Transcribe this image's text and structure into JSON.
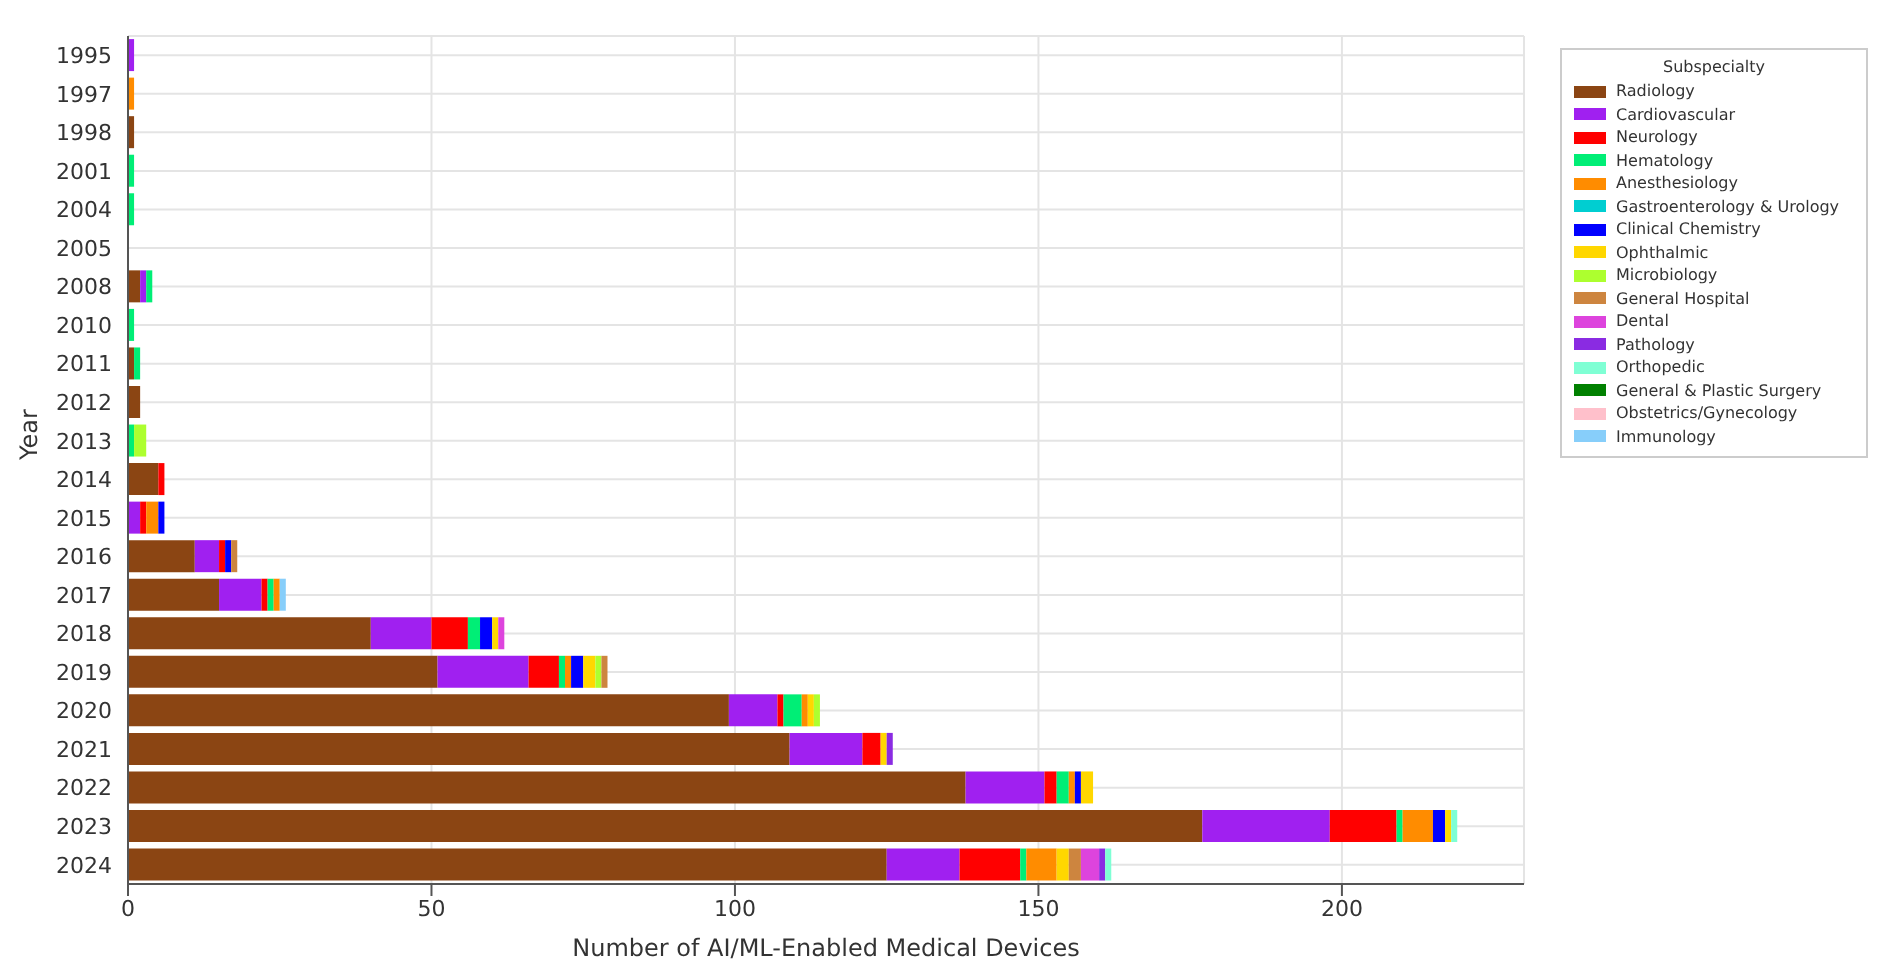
{
  "chart_data": {
    "type": "bar",
    "orientation": "horizontal",
    "stacked": true,
    "xlabel": "Number of AI/ML-Enabled Medical Devices",
    "ylabel": "Year",
    "legend_title": "Subspecialty",
    "legend": "top right",
    "grid": true,
    "categories": [
      "1995",
      "1997",
      "1998",
      "2001",
      "2004",
      "2005",
      "2008",
      "2010",
      "2011",
      "2012",
      "2013",
      "2014",
      "2015",
      "2016",
      "2017",
      "2018",
      "2019",
      "2020",
      "2021",
      "2022",
      "2023",
      "2024"
    ],
    "xlim": [
      0,
      230
    ],
    "xticks": [
      0,
      50,
      100,
      150,
      200
    ],
    "series": [
      {
        "name": "Radiology",
        "color": "#8b4513",
        "values": [
          null,
          null,
          1,
          null,
          null,
          null,
          2,
          null,
          1,
          2,
          null,
          5,
          null,
          11,
          15,
          40,
          51,
          99,
          109,
          138,
          177,
          125
        ]
      },
      {
        "name": "Cardiovascular",
        "color": "#a020f0",
        "values": [
          1,
          null,
          null,
          null,
          null,
          null,
          1,
          null,
          null,
          null,
          null,
          null,
          2,
          4,
          7,
          10,
          15,
          8,
          12,
          13,
          21,
          12
        ]
      },
      {
        "name": "Neurology",
        "color": "#ff0000",
        "values": [
          null,
          null,
          null,
          null,
          null,
          null,
          null,
          null,
          null,
          null,
          null,
          1,
          1,
          1,
          1,
          6,
          5,
          1,
          3,
          2,
          11,
          10
        ]
      },
      {
        "name": "Hematology",
        "color": "#00ee76",
        "values": [
          null,
          null,
          null,
          1,
          1,
          null,
          1,
          1,
          1,
          null,
          1,
          null,
          null,
          null,
          1,
          2,
          1,
          3,
          null,
          2,
          1,
          1
        ]
      },
      {
        "name": "Anesthesiology",
        "color": "#ff8c00",
        "values": [
          null,
          1,
          null,
          null,
          null,
          null,
          null,
          null,
          null,
          null,
          null,
          null,
          2,
          null,
          1,
          null,
          1,
          1,
          null,
          1,
          5,
          5
        ]
      },
      {
        "name": "Gastroenterology & Urology",
        "color": "#00ced1",
        "values": [
          null,
          null,
          null,
          null,
          null,
          null,
          null,
          null,
          null,
          null,
          null,
          null,
          null,
          null,
          null,
          null,
          null,
          null,
          null,
          null,
          null,
          null
        ]
      },
      {
        "name": "Clinical Chemistry",
        "color": "#0000ff",
        "values": [
          null,
          null,
          null,
          null,
          null,
          null,
          null,
          null,
          null,
          null,
          null,
          null,
          1,
          1,
          null,
          2,
          2,
          null,
          null,
          1,
          2,
          null
        ]
      },
      {
        "name": "Ophthalmic",
        "color": "#ffd700",
        "values": [
          null,
          null,
          null,
          null,
          null,
          null,
          null,
          null,
          null,
          null,
          null,
          null,
          null,
          null,
          null,
          1,
          2,
          1,
          1,
          2,
          1,
          2
        ]
      },
      {
        "name": "Microbiology",
        "color": "#adff2f",
        "values": [
          null,
          null,
          null,
          null,
          null,
          null,
          null,
          null,
          null,
          null,
          2,
          null,
          null,
          null,
          null,
          null,
          1,
          1,
          null,
          null,
          null,
          null
        ]
      },
      {
        "name": "General Hospital",
        "color": "#cd853f",
        "values": [
          null,
          null,
          null,
          null,
          null,
          null,
          null,
          null,
          null,
          null,
          null,
          null,
          null,
          1,
          null,
          null,
          1,
          null,
          null,
          null,
          null,
          2
        ]
      },
      {
        "name": "Dental",
        "color": "#dd44dd",
        "values": [
          null,
          null,
          null,
          null,
          null,
          null,
          null,
          null,
          null,
          null,
          null,
          null,
          null,
          null,
          null,
          1,
          null,
          null,
          null,
          null,
          null,
          3
        ]
      },
      {
        "name": "Pathology",
        "color": "#8a2be2",
        "values": [
          null,
          null,
          null,
          null,
          null,
          null,
          null,
          null,
          null,
          null,
          null,
          null,
          null,
          null,
          null,
          null,
          null,
          null,
          1,
          null,
          null,
          1
        ]
      },
      {
        "name": "Orthopedic",
        "color": "#7fffd4",
        "values": [
          null,
          null,
          null,
          null,
          null,
          null,
          null,
          null,
          null,
          null,
          null,
          null,
          null,
          null,
          null,
          null,
          null,
          null,
          null,
          null,
          1,
          1
        ]
      },
      {
        "name": "General & Plastic Surgery",
        "color": "#008000",
        "values": [
          null,
          null,
          null,
          null,
          null,
          null,
          null,
          null,
          null,
          null,
          null,
          null,
          null,
          null,
          null,
          null,
          null,
          null,
          null,
          null,
          null,
          null
        ]
      },
      {
        "name": "Obstetrics/Gynecology",
        "color": "#ffc0cb",
        "values": [
          null,
          null,
          null,
          null,
          null,
          null,
          null,
          null,
          null,
          null,
          null,
          null,
          null,
          null,
          null,
          null,
          null,
          null,
          null,
          null,
          null,
          null
        ]
      },
      {
        "name": "Immunology",
        "color": "#87cefa",
        "values": [
          null,
          null,
          null,
          null,
          null,
          null,
          null,
          null,
          null,
          null,
          null,
          null,
          null,
          null,
          1,
          null,
          null,
          null,
          null,
          null,
          null,
          null
        ]
      }
    ]
  }
}
